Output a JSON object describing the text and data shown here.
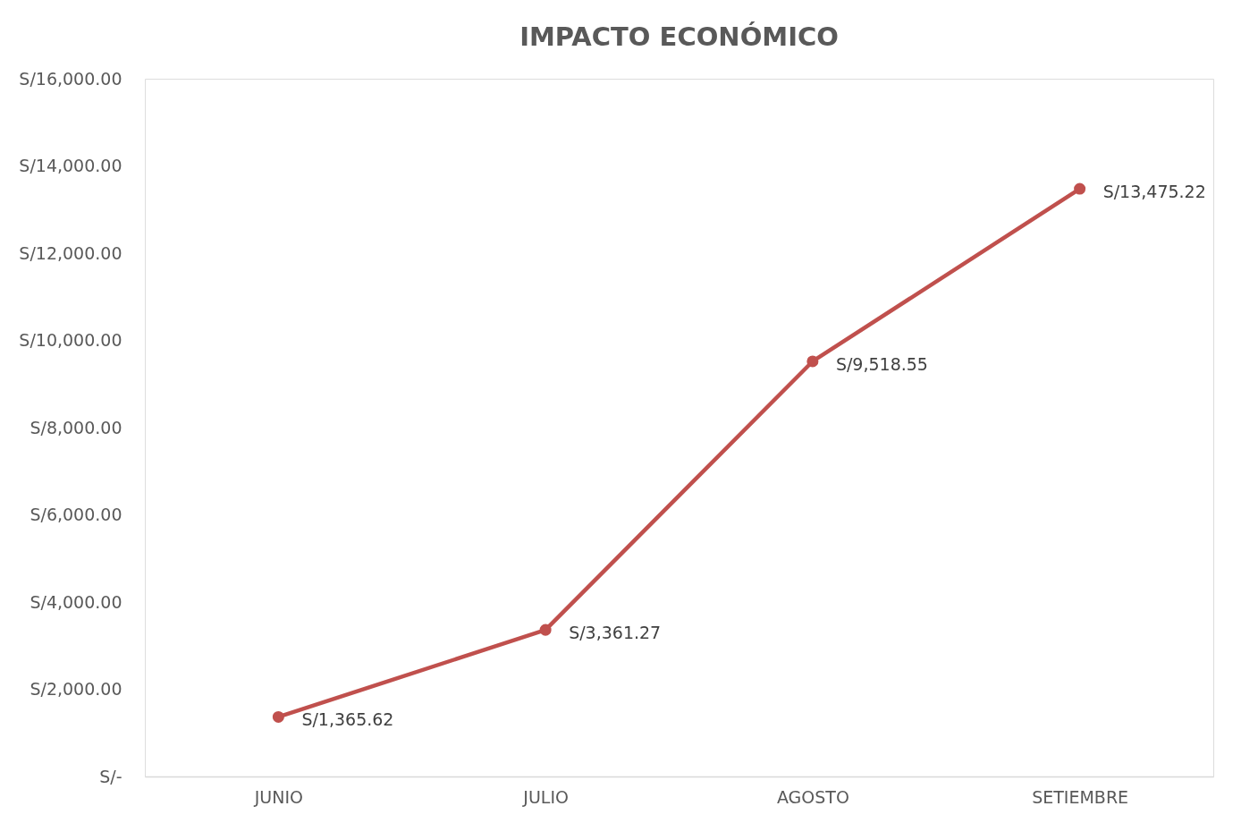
{
  "chart_data": {
    "type": "line",
    "title": "IMPACTO ECONÓMICO",
    "categories": [
      "JUNIO",
      "JULIO",
      "AGOSTO",
      "SETIEMBRE"
    ],
    "series": [
      {
        "color": "#c0504d",
        "values": [
          1365.62,
          3361.27,
          9518.55,
          13475.22
        ],
        "value_labels": [
          "S/1,365.62",
          "S/3,361.27",
          "S/9,518.55",
          "S/13,475.22"
        ]
      }
    ],
    "ylim": [
      0,
      16000
    ],
    "yticks": [
      {
        "value": 0,
        "label": "S/-"
      },
      {
        "value": 2000,
        "label": "S/2,000.00"
      },
      {
        "value": 4000,
        "label": "S/4,000.00"
      },
      {
        "value": 6000,
        "label": "S/6,000.00"
      },
      {
        "value": 8000,
        "label": "S/8,000.00"
      },
      {
        "value": 10000,
        "label": "S/10,000.00"
      },
      {
        "value": 12000,
        "label": "S/12,000.00"
      },
      {
        "value": 14000,
        "label": "S/14,000.00"
      },
      {
        "value": 16000,
        "label": "S/16,000.00"
      }
    ],
    "grid": false,
    "legend": false,
    "marker": "circle",
    "line_style": "solid"
  }
}
